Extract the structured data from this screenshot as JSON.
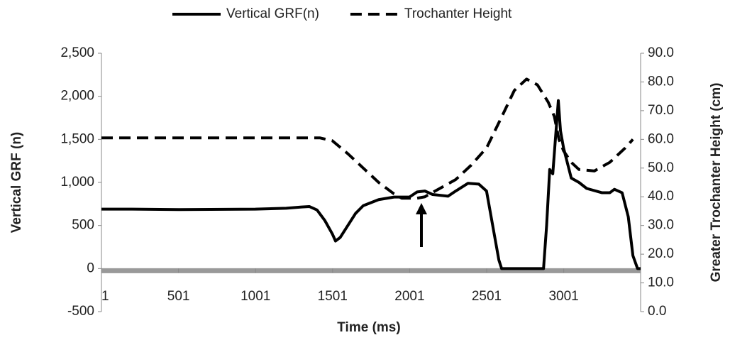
{
  "chart_data": {
    "type": "line",
    "xlabel": "Time (ms)",
    "ylabel": "Vertical GRF (n)",
    "y2label": "Greater Trochanter Height (cm)",
    "xlim": [
      1,
      3500
    ],
    "xticks": [
      1,
      501,
      1001,
      1501,
      2001,
      2501,
      3001
    ],
    "ylim": [
      -500,
      2500
    ],
    "yticks": [
      {
        "value": -500,
        "label": "-500"
      },
      0,
      500,
      {
        "value": 1000,
        "label": "1,000"
      },
      {
        "value": 1500,
        "label": "1,500"
      },
      {
        "value": 2000,
        "label": "2,000"
      },
      {
        "value": 2500,
        "label": "2,500"
      }
    ],
    "y2lim": [
      0,
      90
    ],
    "y2ticks": [
      {
        "value": 0,
        "label": "0.0"
      },
      {
        "value": 10,
        "label": "10.0"
      },
      {
        "value": 20,
        "label": "20.0"
      },
      {
        "value": 30,
        "label": "30.0"
      },
      {
        "value": 40,
        "label": "40.0"
      },
      {
        "value": 50,
        "label": "50.0"
      },
      {
        "value": 60,
        "label": "60.0"
      },
      {
        "value": 70,
        "label": "70.0"
      },
      {
        "value": 80,
        "label": "80.0"
      },
      {
        "value": 90,
        "label": "90.0"
      }
    ],
    "grid": false,
    "legend": "top",
    "series": [
      {
        "name": "Vertical GRF(n)",
        "color": "#000000",
        "dash": "solid",
        "x": [
          1,
          200,
          500,
          1000,
          1200,
          1300,
          1350,
          1400,
          1450,
          1500,
          1520,
          1550,
          1600,
          1650,
          1700,
          1800,
          1900,
          2000,
          2050,
          2100,
          2150,
          2250,
          2300,
          2380,
          2450,
          2500,
          2550,
          2580,
          2598,
          2870,
          2890,
          2910,
          2930,
          2966,
          2980,
          3000,
          3050,
          3100,
          3150,
          3250,
          3300,
          3330,
          3380,
          3420,
          3450,
          3480,
          3500
        ],
        "values": [
          690,
          690,
          685,
          690,
          700,
          715,
          720,
          680,
          560,
          400,
          320,
          360,
          500,
          640,
          730,
          800,
          830,
          830,
          890,
          900,
          860,
          840,
          900,
          990,
          980,
          900,
          400,
          100,
          0,
          0,
          500,
          1150,
          1100,
          1950,
          1600,
          1400,
          1050,
          1000,
          930,
          880,
          880,
          920,
          880,
          600,
          150,
          0,
          0
        ]
      },
      {
        "name": "Trochanter Height",
        "color": "#000000",
        "dash": "dashed",
        "axis": "y2",
        "x": [
          1,
          1420,
          1500,
          1600,
          1700,
          1800,
          1900,
          1950,
          2050,
          2100,
          2200,
          2300,
          2400,
          2500,
          2600,
          2680,
          2760,
          2830,
          2900,
          2940,
          2970,
          3000,
          3050,
          3100,
          3200,
          3300,
          3400,
          3450
        ],
        "values": [
          60.5,
          60.5,
          59.5,
          55,
          50,
          45,
          41,
          39.5,
          39.5,
          40,
          43,
          46,
          51,
          57,
          68,
          77,
          81,
          79,
          73,
          68,
          60,
          56,
          52,
          49.5,
          49,
          52,
          57,
          60
        ]
      }
    ]
  }
}
